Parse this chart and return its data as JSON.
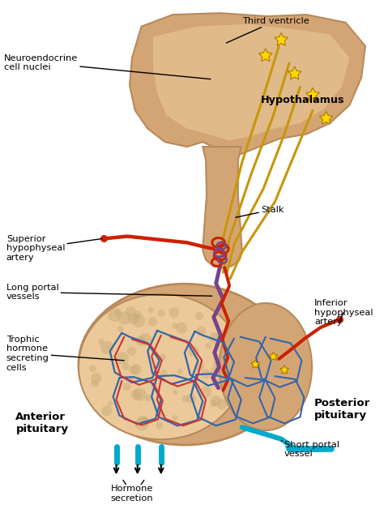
{
  "bg_color": "#ffffff",
  "figsize": [
    4.74,
    6.33
  ],
  "dpi": 100,
  "labels": {
    "third_ventricle": "Third ventricle",
    "neuroendocrine": "Neuroendocrine\ncell nuclei",
    "hypothalamus": "Hypothalamus",
    "stalk": "Stalk",
    "superior_hyp": "Superior\nhypophyseal\nartery",
    "long_portal": "Long portal\nvessels",
    "inferior_hyp": "Inferior\nhypophyseal\nartery",
    "trophic": "Trophic\nhormone\nsecreting\ncells",
    "anterior": "Anterior\npituitary",
    "posterior": "Posterior\npituitary",
    "short_portal": "Short portal\nvessel",
    "hormone": "Hormone\nsecretion"
  },
  "colors": {
    "skin": "#D4A574",
    "skin_light": "#EBC99A",
    "skin_dark": "#B8895A",
    "artery_red": "#CC2200",
    "vein_blue": "#3366AA",
    "portal_purple": "#774488",
    "nerve_yellow": "#C8960A",
    "star_yellow": "#FFD700",
    "cyan_vessel": "#00AACC",
    "capillary_red": "#CC3333",
    "tissue_tan": "#C8A878"
  }
}
